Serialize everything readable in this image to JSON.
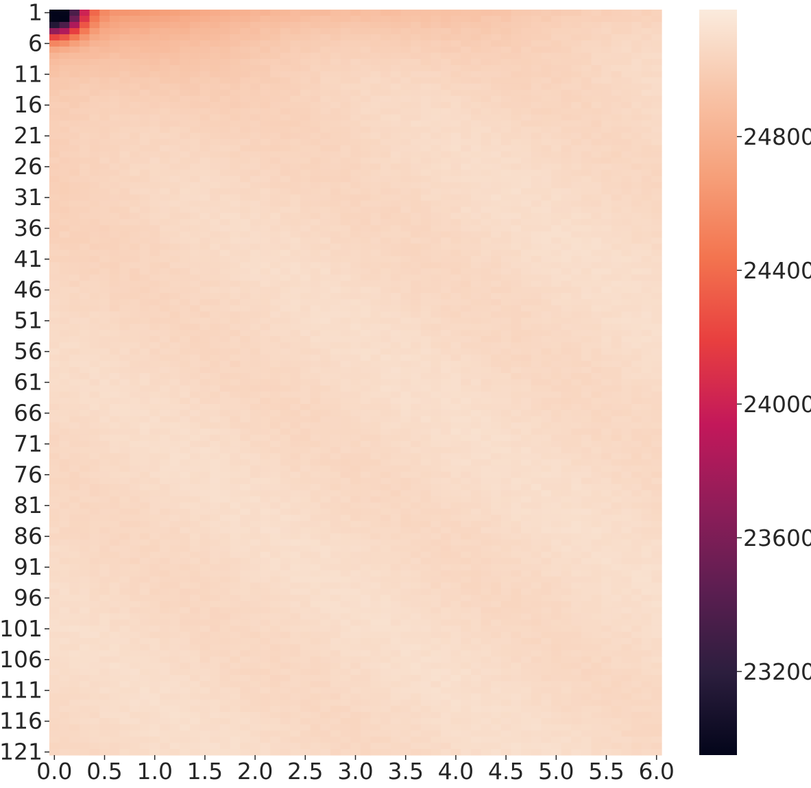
{
  "chart_data": {
    "type": "heatmap",
    "title": "",
    "xlabel": "",
    "ylabel": "",
    "x_ticks": [
      "0.0",
      "0.5",
      "1.0",
      "1.5",
      "2.0",
      "2.5",
      "3.0",
      "3.5",
      "4.0",
      "4.5",
      "5.0",
      "5.5",
      "6.0"
    ],
    "y_ticks": [
      "1",
      "6",
      "11",
      "16",
      "21",
      "26",
      "31",
      "36",
      "41",
      "46",
      "51",
      "56",
      "61",
      "66",
      "71",
      "76",
      "81",
      "86",
      "91",
      "96",
      "101",
      "106",
      "111",
      "116",
      "121"
    ],
    "x_range": [
      0.0,
      6.0
    ],
    "y_range": [
      1,
      121
    ],
    "colorbar": {
      "ticks": [
        "23200",
        "23600",
        "24000",
        "24400",
        "24800"
      ],
      "vmin": 22950,
      "vmax": 25180,
      "colormap": "rocket"
    },
    "approx_values": [
      {
        "x": 0.0,
        "y": 1,
        "value": 22950
      },
      {
        "x": 0.1,
        "y": 1,
        "value": 23350
      },
      {
        "x": 0.2,
        "y": 1,
        "value": 23700
      },
      {
        "x": 0.0,
        "y": 3,
        "value": 23700
      },
      {
        "x": 0.5,
        "y": 1,
        "value": 24450
      },
      {
        "x": 0.5,
        "y": 6,
        "value": 24650
      },
      {
        "x": 1.0,
        "y": 3,
        "value": 24700
      },
      {
        "x": 0.0,
        "y": 11,
        "value": 24700
      },
      {
        "x": 0.0,
        "y": 21,
        "value": 24830
      },
      {
        "x": 0.0,
        "y": 36,
        "value": 24870
      },
      {
        "x": 3.0,
        "y": 1,
        "value": 24850
      },
      {
        "x": 6.0,
        "y": 1,
        "value": 24950
      },
      {
        "x": 3.0,
        "y": 36,
        "value": 25060
      },
      {
        "x": 6.0,
        "y": 61,
        "value": 25080
      },
      {
        "x": 3.0,
        "y": 91,
        "value": 25070
      },
      {
        "x": 6.0,
        "y": 121,
        "value": 25030
      },
      {
        "x": 0.0,
        "y": 121,
        "value": 25060
      }
    ]
  }
}
